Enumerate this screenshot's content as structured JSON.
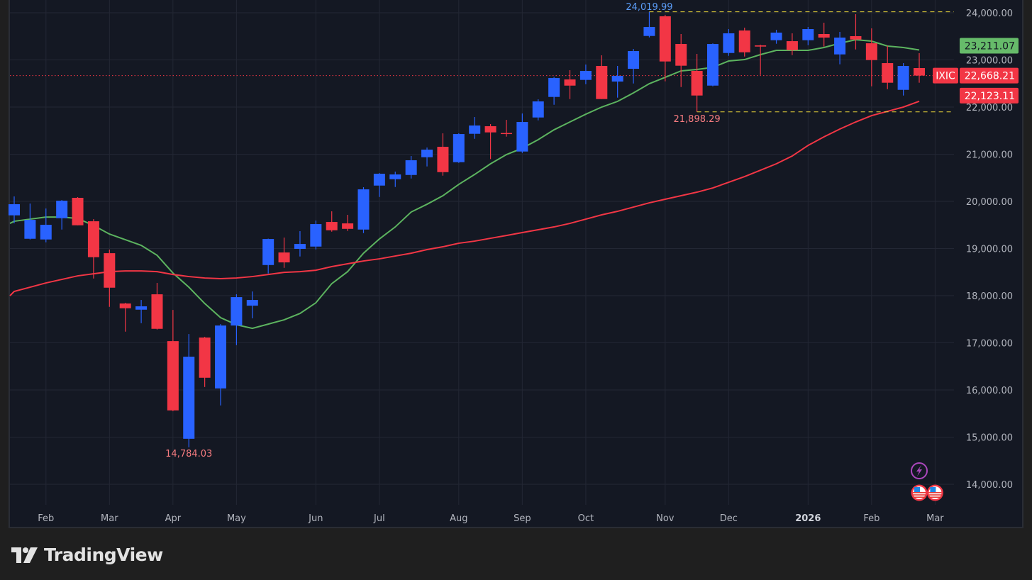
{
  "brand": {
    "name": "TradingView"
  },
  "symbol": "IXIC",
  "colors": {
    "up": "#2962ff",
    "down": "#f23645",
    "ma_short": "#5cb35f",
    "ma_long": "#f23645",
    "high_line": "#e8d43a",
    "background": "#141823",
    "grid": "#232734"
  },
  "chart_data": {
    "type": "candlestick",
    "interval": "weekly",
    "ylim": [
      13500,
      24280
    ],
    "y_ticks": [
      "14,000.00",
      "15,000.00",
      "16,000.00",
      "17,000.00",
      "18,000.00",
      "19,000.00",
      "20,000.00",
      "21,000.00",
      "22,000.00",
      "23,000.00",
      "24,000.00"
    ],
    "y_tick_values": [
      14000,
      15000,
      16000,
      17000,
      18000,
      19000,
      20000,
      21000,
      22000,
      23000,
      24000
    ],
    "grid": true,
    "x_ticks": [
      {
        "label": "Feb",
        "date": "2025-02-03"
      },
      {
        "label": "Mar",
        "date": "2025-03-03"
      },
      {
        "label": "Apr",
        "date": "2025-03-31"
      },
      {
        "label": "May",
        "date": "2025-04-28"
      },
      {
        "label": "Jun",
        "date": "2025-06-02"
      },
      {
        "label": "Jul",
        "date": "2025-06-30"
      },
      {
        "label": "Aug",
        "date": "2025-08-04"
      },
      {
        "label": "Sep",
        "date": "2025-09-01"
      },
      {
        "label": "Oct",
        "date": "2025-09-29"
      },
      {
        "label": "Nov",
        "date": "2025-11-03"
      },
      {
        "label": "Dec",
        "date": "2025-12-01"
      },
      {
        "label": "2026",
        "date": "2026-01-05",
        "year": true
      },
      {
        "label": "Feb",
        "date": "2026-02-02"
      },
      {
        "label": "Mar",
        "date": "2026-03-02"
      }
    ],
    "columns": [
      "date",
      "open",
      "high",
      "low",
      "close"
    ],
    "candles": [
      [
        "2025-01-20",
        19704,
        20105,
        19534,
        19940
      ],
      [
        "2025-01-27",
        19207,
        19954,
        19192,
        19608
      ],
      [
        "2025-02-03",
        19192,
        19849,
        19132,
        19503
      ],
      [
        "2025-02-10",
        19643,
        20029,
        19402,
        20014
      ],
      [
        "2025-02-17",
        20075,
        20090,
        19493,
        19493
      ],
      [
        "2025-02-24",
        19578,
        19623,
        18364,
        18816
      ],
      [
        "2025-03-03",
        18901,
        18977,
        17763,
        18169
      ],
      [
        "2025-03-10",
        17834,
        17849,
        17237,
        17733
      ],
      [
        "2025-03-17",
        17703,
        17909,
        17417,
        17774
      ],
      [
        "2025-03-24",
        18029,
        18270,
        17282,
        17297
      ],
      [
        "2025-03-31",
        17036,
        17698,
        15550,
        15567
      ],
      [
        "2025-04-07",
        14965,
        17187,
        14784.03,
        16706
      ],
      [
        "2025-04-14",
        17112,
        17127,
        16063,
        16259
      ],
      [
        "2025-04-21",
        16033,
        17397,
        15672,
        17367
      ],
      [
        "2025-04-28",
        17367,
        18029,
        16951,
        17969
      ],
      [
        "2025-05-05",
        17788,
        18089,
        17520,
        17909
      ],
      [
        "2025-05-12",
        18650,
        19210,
        18470,
        19202
      ],
      [
        "2025-05-19",
        18916,
        19232,
        18590,
        18706
      ],
      [
        "2025-05-26",
        18992,
        19368,
        18831,
        19097
      ],
      [
        "2025-06-02",
        19041,
        19593,
        18981,
        19518
      ],
      [
        "2025-06-09",
        19563,
        19789,
        19357,
        19387
      ],
      [
        "2025-06-16",
        19533,
        19714,
        19372,
        19417
      ],
      [
        "2025-06-23",
        19402,
        20300,
        19327,
        20255
      ],
      [
        "2025-06-30",
        20335,
        20601,
        20094,
        20586
      ],
      [
        "2025-07-07",
        20470,
        20631,
        20305,
        20571
      ],
      [
        "2025-07-14",
        20560,
        20962,
        20485,
        20872
      ],
      [
        "2025-07-21",
        20936,
        21142,
        20741,
        21097
      ],
      [
        "2025-07-28",
        21157,
        21443,
        20545,
        20620
      ],
      [
        "2025-08-04",
        20831,
        21443,
        20816,
        21428
      ],
      [
        "2025-08-11",
        21433,
        21789,
        21327,
        21609
      ],
      [
        "2025-08-18",
        21594,
        21639,
        20897,
        21463
      ],
      [
        "2025-08-25",
        21450,
        21729,
        21373,
        21440
      ],
      [
        "2025-09-01",
        21057,
        21864,
        21027,
        21684
      ],
      [
        "2025-09-08",
        21779,
        22165,
        21718,
        22120
      ],
      [
        "2025-09-15",
        22215,
        22636,
        22049,
        22616
      ],
      [
        "2025-09-22",
        22586,
        22782,
        22170,
        22455
      ],
      [
        "2025-09-29",
        22576,
        22902,
        22485,
        22767
      ],
      [
        "2025-10-06",
        22872,
        23098,
        22170,
        22170
      ],
      [
        "2025-10-13",
        22541,
        22872,
        22200,
        22661
      ],
      [
        "2025-10-20",
        22812,
        23233,
        22500,
        23188
      ],
      [
        "2025-10-27",
        23508,
        24019.99,
        23478,
        23699
      ],
      [
        "2025-11-03",
        23925,
        23955,
        22546,
        22967
      ],
      [
        "2025-11-10",
        23338,
        23549,
        22425,
        22877
      ],
      [
        "2025-11-17",
        22767,
        23128,
        21898.29,
        22245
      ],
      [
        "2025-11-24",
        22455,
        23350,
        22440,
        23338
      ],
      [
        "2025-12-01",
        23147,
        23654,
        23087,
        23564
      ],
      [
        "2025-12-08",
        23624,
        23684,
        23072,
        23162
      ],
      [
        "2025-12-15",
        23308,
        23323,
        22681,
        23283
      ],
      [
        "2025-12-22",
        23418,
        23639,
        23343,
        23579
      ],
      [
        "2025-12-29",
        23398,
        23564,
        23102,
        23207
      ],
      [
        "2026-01-05",
        23418,
        23699,
        23313,
        23654
      ],
      [
        "2026-01-12",
        23549,
        23789,
        23283,
        23474
      ],
      [
        "2026-01-19",
        23117,
        23594,
        22907,
        23474
      ],
      [
        "2026-01-26",
        23504,
        23970,
        23222,
        23433
      ],
      [
        "2026-02-02",
        23353,
        23669,
        22440,
        22997
      ],
      [
        "2026-02-09",
        22932,
        23298,
        22380,
        22516
      ],
      [
        "2026-02-16",
        22365,
        22932,
        22245,
        22872
      ],
      [
        "2026-02-23",
        22827,
        23143,
        22516,
        22668.21
      ]
    ],
    "series": [
      {
        "type": "line",
        "color": "#5cb35f",
        "values": [
          19578,
          19623,
          19668,
          19668,
          19638,
          19488,
          19307,
          19187,
          19067,
          18856,
          18480,
          18180,
          17834,
          17533,
          17382,
          17307,
          17397,
          17488,
          17623,
          17849,
          18255,
          18510,
          18901,
          19202,
          19458,
          19774,
          19939,
          20120,
          20360,
          20571,
          20797,
          20992,
          21127,
          21308,
          21518,
          21684,
          21849,
          22000,
          22120,
          22300,
          22496,
          22631,
          22767,
          22797,
          22842,
          22977,
          23007,
          23113,
          23203,
          23203,
          23203,
          23263,
          23353,
          23428,
          23398,
          23293,
          23263,
          23211.07
        ]
      },
      {
        "type": "line",
        "color": "#f23645",
        "values": [
          18089,
          18180,
          18270,
          18345,
          18420,
          18465,
          18510,
          18525,
          18525,
          18510,
          18450,
          18405,
          18375,
          18360,
          18375,
          18405,
          18450,
          18495,
          18510,
          18540,
          18616,
          18676,
          18736,
          18781,
          18841,
          18901,
          18977,
          19037,
          19112,
          19157,
          19217,
          19277,
          19338,
          19398,
          19458,
          19533,
          19623,
          19714,
          19789,
          19879,
          19969,
          20045,
          20120,
          20195,
          20285,
          20405,
          20526,
          20661,
          20797,
          20962,
          21187,
          21368,
          21534,
          21684,
          21819,
          21909,
          22000,
          22123.11
        ]
      }
    ],
    "annotations": {
      "high": {
        "label": "24,019.99",
        "value": 24019.99,
        "date": "2025-10-27"
      },
      "range_low": {
        "label": "21,898.29",
        "value": 21898.29,
        "date": "2025-11-17"
      },
      "low": {
        "label": "14,784.03",
        "value": 14784.03,
        "date": "2025-04-07"
      }
    },
    "price_badges": [
      {
        "label": "23,211.07",
        "value": 23211.07,
        "color": "#66bb6a",
        "text_color": "#131722"
      },
      {
        "label": "22,668.21",
        "value": 22668.21,
        "color": "#f23645",
        "text_color": "#ffffff",
        "symbol_tag": "IXIC"
      },
      {
        "label": "22,123.11",
        "value": 22123.11,
        "color": "#f23645",
        "text_color": "#ffffff"
      }
    ],
    "events": [
      {
        "icon": "lightning-icon",
        "date": "2026-02-23"
      },
      {
        "icon": "us-flag-icon",
        "date": "2026-02-23"
      },
      {
        "icon": "us-flag-icon",
        "date": "2026-03-02"
      }
    ]
  }
}
